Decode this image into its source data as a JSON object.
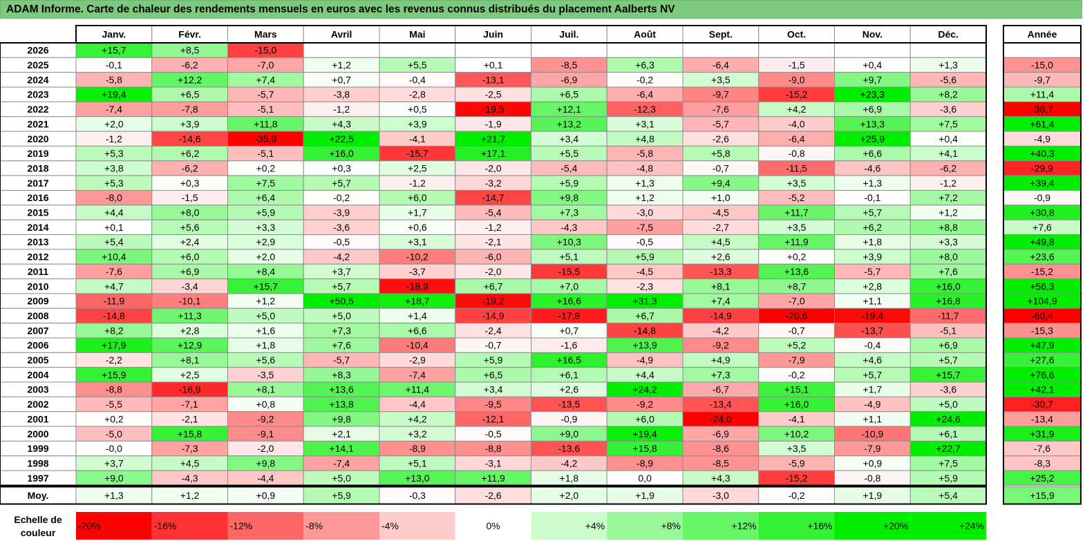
{
  "title": "ADAM Informe. Carte de chaleur des rendements mensuels en euros avec les revenus connus distribués du placement Aalberts NV",
  "chart_data": {
    "type": "heatmap",
    "title": "ADAM Informe. Carte de chaleur des rendements mensuels en euros avec les revenus connus distribués du placement Aalberts NV",
    "columns": [
      "Janv.",
      "Févr.",
      "Mars",
      "Avril",
      "Mai",
      "Juin",
      "Juil.",
      "Août",
      "Sept.",
      "Oct.",
      "Nov.",
      "Déc."
    ],
    "year_column_label": "Année",
    "rows": [
      {
        "year": "2026",
        "values": [
          "+15,7",
          "+8,5",
          "-15,0",
          "",
          "",
          "",
          "",
          "",
          "",
          "",
          "",
          ""
        ],
        "annual": ""
      },
      {
        "year": "2025",
        "values": [
          "-0,1",
          "-6,2",
          "-7,0",
          "+1,2",
          "+5,5",
          "+0,1",
          "-8,5",
          "+6,3",
          "-6,4",
          "-1,5",
          "+0,4",
          "+1,3"
        ],
        "annual": "-15,0"
      },
      {
        "year": "2024",
        "values": [
          "-5,8",
          "+12,2",
          "+7,4",
          "+0,7",
          "-0,4",
          "-13,1",
          "-6,9",
          "-0,2",
          "+3,5",
          "-9,0",
          "+9,7",
          "-5,6"
        ],
        "annual": "-9,7"
      },
      {
        "year": "2023",
        "values": [
          "+19,4",
          "+6,5",
          "-5,7",
          "-3,8",
          "-2,8",
          "-2,5",
          "+6,5",
          "-6,4",
          "-9,7",
          "-15,2",
          "+23,3",
          "+8,2"
        ],
        "annual": "+11,4"
      },
      {
        "year": "2022",
        "values": [
          "-7,4",
          "-7,8",
          "-5,1",
          "-1,2",
          "+0,5",
          "-19,5",
          "+12,1",
          "-12,3",
          "-7,6",
          "+4,2",
          "+6,9",
          "-3,6"
        ],
        "annual": "-36,7"
      },
      {
        "year": "2021",
        "values": [
          "+2,0",
          "+3,9",
          "+11,8",
          "+4,3",
          "+3,9",
          "-1,9",
          "+13,2",
          "+3,1",
          "-5,7",
          "-4,0",
          "+13,3",
          "+7,5"
        ],
        "annual": "+61,4"
      },
      {
        "year": "2020",
        "values": [
          "-1,2",
          "-14,6",
          "-35,9",
          "+22,5",
          "-4,1",
          "+21,7",
          "+3,4",
          "+4,8",
          "-2,6",
          "-6,4",
          "+25,9",
          "+0,4"
        ],
        "annual": "-4,9"
      },
      {
        "year": "2019",
        "values": [
          "+5,3",
          "+6,2",
          "-5,1",
          "+16,0",
          "-15,7",
          "+17,1",
          "+5,5",
          "-5,8",
          "+5,8",
          "-0,8",
          "+6,6",
          "+4,1"
        ],
        "annual": "+40,3"
      },
      {
        "year": "2018",
        "values": [
          "+3,8",
          "-6,2",
          "+0,2",
          "+0,3",
          "+2,5",
          "-2,0",
          "-5,4",
          "-4,8",
          "-0,7",
          "-11,5",
          "-4,6",
          "-6,2"
        ],
        "annual": "-29,9"
      },
      {
        "year": "2017",
        "values": [
          "+5,3",
          "+0,3",
          "+7,5",
          "+5,7",
          "-1,2",
          "-3,2",
          "+5,9",
          "+1,3",
          "+9,4",
          "+3,5",
          "+1,3",
          "-1,2"
        ],
        "annual": "+39,4"
      },
      {
        "year": "2016",
        "values": [
          "-8,0",
          "-1,5",
          "+6,4",
          "-0,2",
          "+6,0",
          "-14,7",
          "+9,8",
          "+1,2",
          "+1,0",
          "-5,2",
          "-0,1",
          "+7,2"
        ],
        "annual": "-0,9"
      },
      {
        "year": "2015",
        "values": [
          "+4,4",
          "+8,0",
          "+5,9",
          "-3,9",
          "+1,7",
          "-5,4",
          "+7,3",
          "-3,0",
          "-4,5",
          "+11,7",
          "+5,7",
          "+1,2"
        ],
        "annual": "+30,8"
      },
      {
        "year": "2014",
        "values": [
          "+0,1",
          "+5,6",
          "+3,3",
          "-3,6",
          "+0,6",
          "-1,2",
          "-4,3",
          "-7,5",
          "-2,7",
          "+3,5",
          "+6,2",
          "+8,8"
        ],
        "annual": "+7,6"
      },
      {
        "year": "2013",
        "values": [
          "+5,4",
          "+2,4",
          "+2,9",
          "-0,5",
          "+3,1",
          "-2,1",
          "+10,3",
          "-0,5",
          "+4,5",
          "+11,9",
          "+1,8",
          "+3,3"
        ],
        "annual": "+49,8"
      },
      {
        "year": "2012",
        "values": [
          "+10,4",
          "+6,0",
          "+2,0",
          "-4,2",
          "-10,2",
          "-6,0",
          "+5,1",
          "+5,9",
          "+2,6",
          "+0,2",
          "+3,9",
          "+8,0"
        ],
        "annual": "+23,6"
      },
      {
        "year": "2011",
        "values": [
          "-7,6",
          "+6,9",
          "+8,4",
          "+3,7",
          "-3,7",
          "-2,0",
          "-15,5",
          "-4,5",
          "-13,3",
          "+13,6",
          "-5,7",
          "+7,6"
        ],
        "annual": "-15,2"
      },
      {
        "year": "2010",
        "values": [
          "+4,7",
          "-3,4",
          "+15,7",
          "+5,7",
          "-18,9",
          "+6,7",
          "+7,0",
          "-2,3",
          "+8,1",
          "+8,7",
          "+2,8",
          "+16,0"
        ],
        "annual": "+56,3"
      },
      {
        "year": "2009",
        "values": [
          "-11,9",
          "-10,1",
          "+1,2",
          "+50,5",
          "+18,7",
          "-19,2",
          "+16,6",
          "+31,3",
          "+7,4",
          "-7,0",
          "+1,1",
          "+16,8"
        ],
        "annual": "+104,9"
      },
      {
        "year": "2008",
        "values": [
          "-14,8",
          "+11,3",
          "+5,0",
          "+5,0",
          "+1,4",
          "-14,9",
          "-17,8",
          "+6,7",
          "-14,9",
          "-20,6",
          "-19,4",
          "-11,7"
        ],
        "annual": "-60,4"
      },
      {
        "year": "2007",
        "values": [
          "+8,2",
          "+2,8",
          "+1,6",
          "+7,3",
          "+6,6",
          "-2,4",
          "+0,7",
          "-14,8",
          "-4,2",
          "-0,7",
          "-13,7",
          "-5,1"
        ],
        "annual": "-15,3"
      },
      {
        "year": "2006",
        "values": [
          "+17,9",
          "+12,9",
          "+1,8",
          "+7,6",
          "-10,4",
          "-0,7",
          "-1,6",
          "+13,9",
          "-9,2",
          "+5,2",
          "-0,4",
          "+6,9"
        ],
        "annual": "+47,9"
      },
      {
        "year": "2005",
        "values": [
          "-2,2",
          "+8,1",
          "+5,6",
          "-5,7",
          "-2,9",
          "+5,9",
          "+16,5",
          "-4,9",
          "+4,9",
          "-7,9",
          "+4,6",
          "+5,7"
        ],
        "annual": "+27,6"
      },
      {
        "year": "2004",
        "values": [
          "+15,9",
          "+2,5",
          "-3,5",
          "+8,3",
          "-7,4",
          "+6,5",
          "+6,1",
          "+4,4",
          "+7,3",
          "-0,2",
          "+5,7",
          "+15,7"
        ],
        "annual": "+76,6"
      },
      {
        "year": "2003",
        "values": [
          "-8,8",
          "-16,9",
          "+8,1",
          "+13,6",
          "+11,4",
          "+3,4",
          "+2,6",
          "+24,2",
          "-6,7",
          "+15,1",
          "+1,7",
          "-3,6"
        ],
        "annual": "+42,1"
      },
      {
        "year": "2002",
        "values": [
          "-5,5",
          "-7,1",
          "+0,8",
          "+13,8",
          "-4,4",
          "-9,5",
          "-13,5",
          "-9,2",
          "-13,4",
          "+16,0",
          "-4,9",
          "+5,0"
        ],
        "annual": "-30,7"
      },
      {
        "year": "2001",
        "values": [
          "+0,2",
          "-2,1",
          "-9,2",
          "+9,8",
          "+4,2",
          "-12,1",
          "-0,9",
          "+6,0",
          "-24,0",
          "-4,1",
          "+1,1",
          "+24,6"
        ],
        "annual": "-13,4"
      },
      {
        "year": "2000",
        "values": [
          "-5,0",
          "+15,8",
          "-9,1",
          "+2,1",
          "+3,2",
          "-0,5",
          "+9,0",
          "+19,4",
          "-6,9",
          "+10,2",
          "-10,9",
          "+6,1"
        ],
        "annual": "+31,9"
      },
      {
        "year": "1999",
        "values": [
          "-0,0",
          "-7,3",
          "-2,0",
          "+14,1",
          "-8,9",
          "-8,8",
          "-13,6",
          "+15,8",
          "-8,6",
          "+3,5",
          "-7,9",
          "+22,7"
        ],
        "annual": "-7,6"
      },
      {
        "year": "1998",
        "values": [
          "+3,7",
          "+4,5",
          "+9,8",
          "-7,4",
          "+5,1",
          "-3,1",
          "-4,2",
          "-8,9",
          "-8,5",
          "-5,9",
          "+0,9",
          "+7,5"
        ],
        "annual": "-8,3"
      },
      {
        "year": "1997",
        "values": [
          "+9,0",
          "-4,3",
          "-4,4",
          "+5,0",
          "+13,0",
          "+11,9",
          "+1,8",
          "0,0",
          "+4,3",
          "-15,2",
          "-0,8",
          "+5,9"
        ],
        "annual": "+25,2"
      }
    ],
    "average": {
      "label": "Moy.",
      "values": [
        "+1,3",
        "+1,2",
        "+0,9",
        "+5,9",
        "-0,3",
        "-2,6",
        "+2,0",
        "+1,9",
        "-3,0",
        "-0,2",
        "+1,9",
        "+5,4"
      ],
      "annual": "+15,9"
    },
    "color_scale": {
      "label_line1": "Echelle de",
      "label_line2": "couleur",
      "steps": [
        "-20%",
        "-16%",
        "-12%",
        "-8%",
        "-4%",
        "0%",
        "+4%",
        "+8%",
        "+12%",
        "+16%",
        "+20%",
        "+24%"
      ],
      "step_values": [
        -20,
        -16,
        -12,
        -8,
        -4,
        0,
        4,
        8,
        12,
        16,
        20,
        24
      ]
    },
    "colors": {
      "negative_max": "#ff0000",
      "neutral": "#ffffff",
      "positive_max": "#00ee00",
      "title_bg": "#7dc97d"
    }
  }
}
